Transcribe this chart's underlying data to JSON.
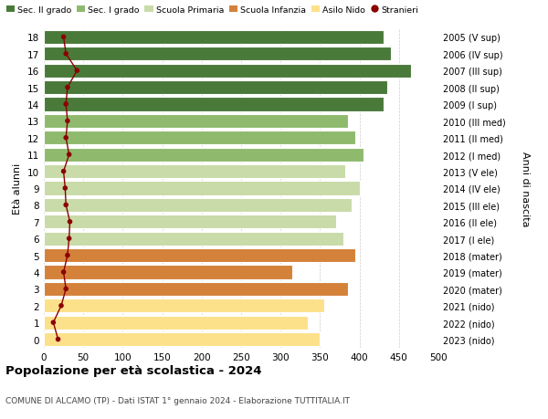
{
  "ages": [
    0,
    1,
    2,
    3,
    4,
    5,
    6,
    7,
    8,
    9,
    10,
    11,
    12,
    13,
    14,
    15,
    16,
    17,
    18
  ],
  "right_labels": [
    "2023 (nido)",
    "2022 (nido)",
    "2021 (nido)",
    "2020 (mater)",
    "2019 (mater)",
    "2018 (mater)",
    "2017 (I ele)",
    "2016 (II ele)",
    "2015 (III ele)",
    "2014 (IV ele)",
    "2013 (V ele)",
    "2012 (I med)",
    "2011 (II med)",
    "2010 (III med)",
    "2009 (I sup)",
    "2008 (II sup)",
    "2007 (III sup)",
    "2006 (IV sup)",
    "2005 (V sup)"
  ],
  "bar_values": [
    350,
    335,
    355,
    385,
    315,
    395,
    380,
    370,
    390,
    400,
    382,
    405,
    395,
    385,
    430,
    435,
    465,
    440,
    430
  ],
  "bar_colors": [
    "#fce08a",
    "#fce08a",
    "#fce08a",
    "#d4813a",
    "#d4813a",
    "#d4813a",
    "#c8dba8",
    "#c8dba8",
    "#c8dba8",
    "#c8dba8",
    "#c8dba8",
    "#8fba6e",
    "#8fba6e",
    "#8fba6e",
    "#4a7a3a",
    "#4a7a3a",
    "#4a7a3a",
    "#4a7a3a",
    "#4a7a3a"
  ],
  "stranieri_values": [
    18,
    12,
    22,
    28,
    25,
    30,
    32,
    33,
    28,
    27,
    25,
    32,
    28,
    30,
    28,
    30,
    42,
    28,
    25
  ],
  "legend_labels": [
    "Sec. II grado",
    "Sec. I grado",
    "Scuola Primaria",
    "Scuola Infanzia",
    "Asilo Nido",
    "Stranieri"
  ],
  "legend_colors": [
    "#4a7a3a",
    "#8fba6e",
    "#c8dba8",
    "#d4813a",
    "#fce08a",
    "#8b0000"
  ],
  "title": "Popolazione per età scolastica - 2024",
  "subtitle": "COMUNE DI ALCAMO (TP) - Dati ISTAT 1° gennaio 2024 - Elaborazione TUTTITALIA.IT",
  "ylabel_left": "Età alunni",
  "ylabel_right": "Anni di nascita",
  "xlim": [
    0,
    500
  ],
  "xticks": [
    0,
    50,
    100,
    150,
    200,
    250,
    300,
    350,
    400,
    450,
    500
  ],
  "grid_color": "#cccccc",
  "bar_height": 0.82
}
